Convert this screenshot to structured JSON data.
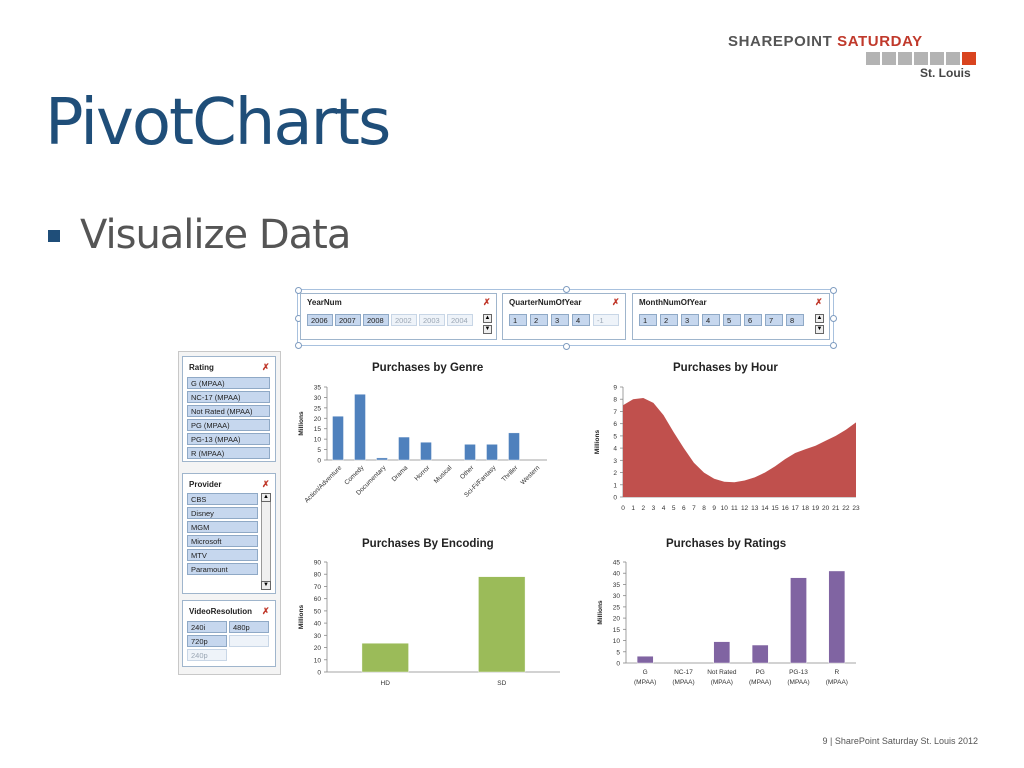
{
  "logo": {
    "part1": "SHAREPOINT",
    "part2": "SATURDAY",
    "city": "St. Louis"
  },
  "title": "PivotCharts",
  "bullet": "Visualize Data",
  "slicers": {
    "yearnum": {
      "title": "YearNum",
      "items": [
        "2006",
        "2007",
        "2008",
        "2002",
        "2003",
        "2004"
      ]
    },
    "quarter": {
      "title": "QuarterNumOfYear",
      "items": [
        "1",
        "2",
        "3",
        "4",
        "-1"
      ]
    },
    "month": {
      "title": "MonthNumOfYear",
      "items": [
        "1",
        "2",
        "3",
        "4",
        "5",
        "6",
        "7",
        "8"
      ]
    },
    "rating": {
      "title": "Rating",
      "items": [
        "G (MPAA)",
        "NC-17 (MPAA)",
        "Not Rated (MPAA)",
        "PG (MPAA)",
        "PG-13 (MPAA)",
        "R (MPAA)"
      ]
    },
    "provider": {
      "title": "Provider",
      "items": [
        "CBS",
        "Disney",
        "MGM",
        "Microsoft",
        "MTV",
        "Paramount"
      ]
    },
    "videores": {
      "title": "VideoResolution",
      "items": [
        "240i",
        "480p",
        "720p",
        "240p"
      ]
    }
  },
  "icons": {
    "clear": "clear-filter-icon",
    "scroll_up": "scroll-up-icon",
    "scroll_down": "scroll-down-icon"
  },
  "chart_data": [
    {
      "type": "bar",
      "title": "Purchases by Genre",
      "ylabel": "Millions",
      "ylim": [
        0,
        35
      ],
      "yticks": [
        0,
        5,
        10,
        15,
        20,
        25,
        30,
        35
      ],
      "color": "#4f81bd",
      "categories": [
        "Action/Adventure",
        "Comedy",
        "Documentary",
        "Drama",
        "Horror",
        "Musical",
        "Other",
        "Sci-Fi/Fantasy",
        "Thriller",
        "Western"
      ],
      "values": [
        21,
        31.5,
        1,
        11,
        8.5,
        0,
        7.5,
        7.5,
        13,
        0
      ]
    },
    {
      "type": "area",
      "title": "Purchases by Hour",
      "ylabel": "Millions",
      "ylim": [
        0,
        9
      ],
      "yticks": [
        0,
        1,
        2,
        3,
        4,
        5,
        6,
        7,
        8,
        9
      ],
      "color": "#c0504d",
      "x": [
        0,
        1,
        2,
        3,
        4,
        5,
        6,
        7,
        8,
        9,
        10,
        11,
        12,
        13,
        14,
        15,
        16,
        17,
        18,
        19,
        20,
        21,
        22,
        23
      ],
      "values": [
        7.5,
        8.0,
        8.1,
        7.7,
        6.7,
        5.3,
        4.0,
        2.8,
        2.0,
        1.5,
        1.25,
        1.2,
        1.35,
        1.6,
        2.0,
        2.5,
        3.1,
        3.6,
        3.9,
        4.2,
        4.6,
        5.0,
        5.5,
        6.1
      ]
    },
    {
      "type": "bar",
      "title": "Purchases By Encoding",
      "ylabel": "Millions",
      "ylim": [
        0,
        90
      ],
      "yticks": [
        0,
        10,
        20,
        30,
        40,
        50,
        60,
        70,
        80,
        90
      ],
      "color": "#9bbb59",
      "categories": [
        "HD",
        "SD"
      ],
      "values": [
        23.5,
        78
      ]
    },
    {
      "type": "bar",
      "title": "Purchases by Ratings",
      "ylabel": "Millions",
      "ylim": [
        0,
        45
      ],
      "yticks": [
        0,
        5,
        10,
        15,
        20,
        25,
        30,
        35,
        40,
        45
      ],
      "color": "#8064a2",
      "categories": [
        "G (MPAA)",
        "NC-17 (MPAA)",
        "Not Rated (MPAA)",
        "PG (MPAA)",
        "PG-13 (MPAA)",
        "R (MPAA)"
      ],
      "values": [
        3,
        0,
        9.5,
        8,
        38,
        41
      ]
    }
  ],
  "footer": "9   |   SharePoint Saturday St. Louis 2012"
}
